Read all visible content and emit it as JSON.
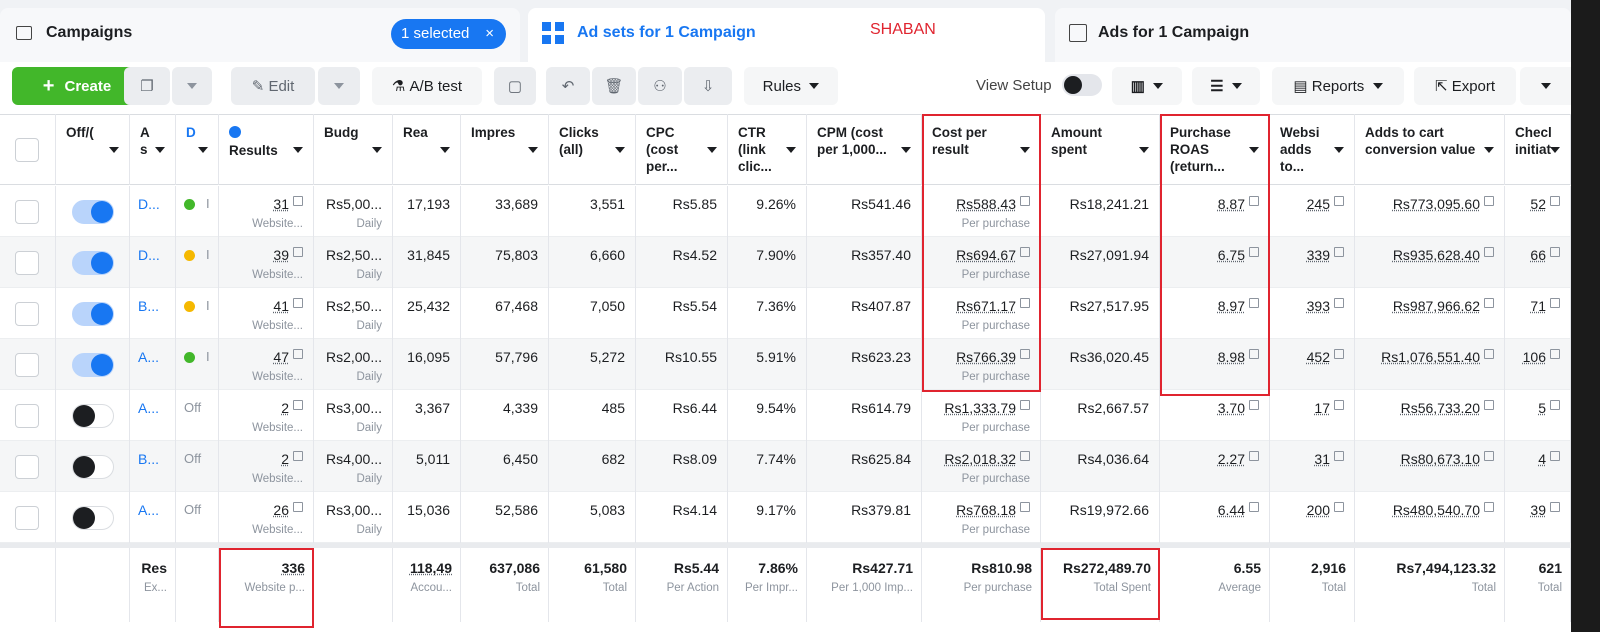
{
  "tabs": {
    "campaigns": "Campaigns",
    "selected": "1 selected",
    "adsets": "Ad sets for 1 Campaign",
    "watermark": "SHABAN",
    "ads": "Ads for 1 Campaign"
  },
  "toolbar": {
    "create": "Create",
    "edit": "Edit",
    "ab_test": "A/B test",
    "rules": "Rules",
    "view_setup": "View Setup",
    "reports": "Reports",
    "export": "Export"
  },
  "table": {
    "headers": [
      "Off/(",
      "A s",
      "D",
      "Results",
      "Budg",
      "Rea",
      "Impres",
      "Clicks (all)",
      "CPC (cost per...",
      "CTR (link clic...",
      "CPM (cost per 1,000...",
      "Cost per result",
      "Amount spent",
      "Purchase ROAS (return...",
      "Websi adds to...",
      "Adds to cart conversion value",
      "Checl initiat"
    ],
    "rows": [
      {
        "on": true,
        "name": "D...",
        "dot": "#42b72a",
        "delivery": "I",
        "cells": [
          {
            "text": "31",
            "sub": "Website..."
          },
          {
            "text": "Rs5,00...",
            "sub": "Daily"
          },
          "17,193",
          "33,689",
          "3,551",
          "Rs5.85",
          "9.26%",
          "Rs541.46",
          {
            "text": "Rs588.43",
            "sub": "Per purchase"
          },
          "Rs18,241.21",
          "8.87",
          "245",
          "Rs773,095.60",
          "52"
        ]
      },
      {
        "on": true,
        "name": "D...",
        "dot": "#f5b800",
        "delivery": "I",
        "cells": [
          {
            "text": "39",
            "sub": "Website..."
          },
          {
            "text": "Rs2,50...",
            "sub": "Daily"
          },
          "31,845",
          "75,803",
          "6,660",
          "Rs4.52",
          "7.90%",
          "Rs357.40",
          {
            "text": "Rs694.67",
            "sub": "Per purchase"
          },
          "Rs27,091.94",
          "6.75",
          "339",
          "Rs935,628.40",
          "66"
        ]
      },
      {
        "on": true,
        "name": "B...",
        "dot": "#f5b800",
        "delivery": "I",
        "cells": [
          {
            "text": "41",
            "sub": "Website..."
          },
          {
            "text": "Rs2,50...",
            "sub": "Daily"
          },
          "25,432",
          "67,468",
          "7,050",
          "Rs5.54",
          "7.36%",
          "Rs407.87",
          {
            "text": "Rs671.17",
            "sub": "Per purchase"
          },
          "Rs27,517.95",
          "8.97",
          "393",
          "Rs987,966.62",
          "71"
        ]
      },
      {
        "on": true,
        "name": "A...",
        "dot": "#42b72a",
        "delivery": "I",
        "cells": [
          {
            "text": "47",
            "sub": "Website..."
          },
          {
            "text": "Rs2,00...",
            "sub": "Daily"
          },
          "16,095",
          "57,796",
          "5,272",
          "Rs10.55",
          "5.91%",
          "Rs623.23",
          {
            "text": "Rs766.39",
            "sub": "Per purchase"
          },
          "Rs36,020.45",
          "8.98",
          "452",
          "Rs1,076,551.40",
          "106"
        ]
      },
      {
        "on": false,
        "name": "A...",
        "delivery": "Off",
        "cells": [
          {
            "text": "2",
            "sub": "Website..."
          },
          {
            "text": "Rs3,00...",
            "sub": "Daily"
          },
          "3,367",
          "4,339",
          "485",
          "Rs6.44",
          "9.54%",
          "Rs614.79",
          {
            "text": "Rs1,333.79",
            "sub": "Per purchase"
          },
          "Rs2,667.57",
          "3.70",
          "17",
          "Rs56,733.20",
          "5"
        ]
      },
      {
        "on": false,
        "name": "B...",
        "delivery": "Off",
        "cells": [
          {
            "text": "2",
            "sub": "Website..."
          },
          {
            "text": "Rs4,00...",
            "sub": "Daily"
          },
          "5,011",
          "6,450",
          "682",
          "Rs8.09",
          "7.74%",
          "Rs625.84",
          {
            "text": "Rs2,018.32",
            "sub": "Per purchase"
          },
          "Rs4,036.64",
          "2.27",
          "31",
          "Rs80,673.10",
          "4"
        ]
      },
      {
        "on": false,
        "name": "A...",
        "delivery": "Off",
        "cells": [
          {
            "text": "26",
            "sub": "Website..."
          },
          {
            "text": "Rs3,00...",
            "sub": "Daily"
          },
          "15,036",
          "52,586",
          "5,083",
          "Rs4.14",
          "9.17%",
          "Rs379.81",
          {
            "text": "Rs768.18",
            "sub": "Per purchase"
          },
          "Rs19,972.66",
          "6.44",
          "200",
          "Rs480,540.70",
          "39"
        ]
      }
    ],
    "totals": [
      {
        "text": "Res",
        "sub": "Ex..."
      },
      null,
      {
        "text": "336",
        "sub": "Website p..."
      },
      null,
      {
        "text": "118,49",
        "sub": "Accou..."
      },
      {
        "text": "637,086",
        "sub": "Total"
      },
      {
        "text": "61,580",
        "sub": "Total"
      },
      {
        "text": "Rs5.44",
        "sub": "Per Action"
      },
      {
        "text": "7.86%",
        "sub": "Per Impr..."
      },
      {
        "text": "Rs427.71",
        "sub": "Per 1,000 Imp..."
      },
      {
        "text": "Rs810.98",
        "sub": "Per purchase"
      },
      {
        "text": "Rs272,489.70",
        "sub": "Total Spent"
      },
      {
        "text": "6.55",
        "sub": "Average"
      },
      {
        "text": "2,916",
        "sub": "Total"
      },
      {
        "text": "Rs7,494,123.32",
        "sub": "Total"
      },
      {
        "text": "621",
        "sub": "Total"
      }
    ]
  }
}
